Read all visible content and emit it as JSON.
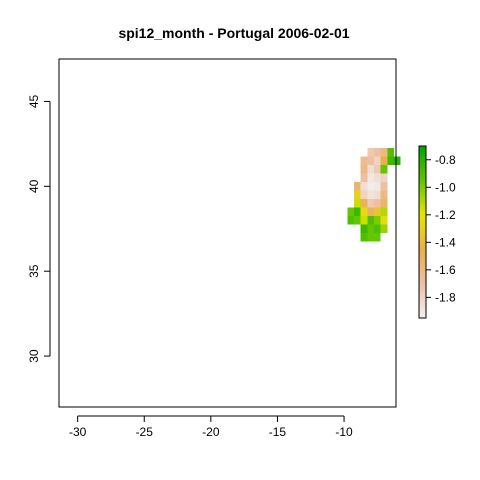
{
  "chart_data": {
    "type": "heatmap",
    "title": "spi12_month - Portugal 2006-02-01",
    "xlabel": "",
    "ylabel": "",
    "xlim": [
      -31.4,
      -6.1
    ],
    "ylim": [
      27,
      47.5
    ],
    "x_ticks": [
      -30,
      -25,
      -20,
      -15,
      -10
    ],
    "x_tick_labels": [
      "-30",
      "-25",
      "-20",
      "-15",
      "-10"
    ],
    "y_ticks": [
      30,
      35,
      40,
      45
    ],
    "y_tick_labels": [
      "30",
      "35",
      "40",
      "45"
    ],
    "grid": false,
    "legend": {
      "placement": "right",
      "range": [
        -1.95,
        -0.7
      ],
      "ticks": [
        -1.8,
        -1.6,
        -1.4,
        -1.2,
        -1.0,
        -0.8
      ],
      "tick_labels": [
        "-1.8",
        "-1.6",
        "-1.4",
        "-1.2",
        "-1.0",
        "-0.8"
      ],
      "colors": [
        "#f2f2f2",
        "#eebfa4",
        "#e8b04a",
        "#e6e600",
        "#63c600",
        "#00a600"
      ]
    },
    "cell_size": 0.5,
    "cells": [
      [
        -8.0,
        42.0,
        -1.75
      ],
      [
        -7.5,
        42.0,
        -1.7
      ],
      [
        -7.0,
        42.0,
        -1.6
      ],
      [
        -6.5,
        42.0,
        -0.9
      ],
      [
        -8.5,
        41.5,
        -1.65
      ],
      [
        -8.0,
        41.5,
        -1.7
      ],
      [
        -7.5,
        41.5,
        -1.8
      ],
      [
        -7.0,
        41.5,
        -1.45
      ],
      [
        -6.5,
        41.5,
        -0.85
      ],
      [
        -6.0,
        41.5,
        -0.8
      ],
      [
        -8.5,
        41.0,
        -1.6
      ],
      [
        -8.0,
        41.0,
        -1.85
      ],
      [
        -7.5,
        41.0,
        -1.75
      ],
      [
        -7.0,
        41.0,
        -0.95
      ],
      [
        -8.5,
        40.5,
        -1.7
      ],
      [
        -8.0,
        40.5,
        -1.9
      ],
      [
        -7.5,
        40.5,
        -1.85
      ],
      [
        -7.0,
        40.5,
        -1.8
      ],
      [
        -9.0,
        40.0,
        -1.55
      ],
      [
        -8.5,
        40.0,
        -1.85
      ],
      [
        -8.0,
        40.0,
        -1.92
      ],
      [
        -7.5,
        40.0,
        -1.9
      ],
      [
        -7.0,
        40.0,
        -1.7
      ],
      [
        -9.0,
        39.5,
        -1.3
      ],
      [
        -8.5,
        39.5,
        -1.8
      ],
      [
        -8.0,
        39.5,
        -1.88
      ],
      [
        -7.5,
        39.5,
        -1.85
      ],
      [
        -7.0,
        39.5,
        -1.6
      ],
      [
        -9.0,
        39.0,
        -1.15
      ],
      [
        -8.5,
        39.0,
        -1.5
      ],
      [
        -8.0,
        39.0,
        -1.75
      ],
      [
        -7.5,
        39.0,
        -1.7
      ],
      [
        -7.0,
        39.0,
        -1.55
      ],
      [
        -9.5,
        38.5,
        -0.95
      ],
      [
        -9.0,
        38.5,
        -0.85
      ],
      [
        -8.5,
        38.5,
        -1.25
      ],
      [
        -8.0,
        38.5,
        -1.5
      ],
      [
        -7.5,
        38.5,
        -1.35
      ],
      [
        -7.0,
        38.5,
        -1.1
      ],
      [
        -9.5,
        38.0,
        -0.9
      ],
      [
        -9.0,
        38.0,
        -0.95
      ],
      [
        -8.5,
        38.0,
        -1.15
      ],
      [
        -8.0,
        38.0,
        -0.9
      ],
      [
        -7.5,
        38.0,
        -1.0
      ],
      [
        -7.0,
        38.0,
        -1.25
      ],
      [
        -8.5,
        37.5,
        -0.85
      ],
      [
        -8.0,
        37.5,
        -0.95
      ],
      [
        -7.5,
        37.5,
        -0.9
      ],
      [
        -7.0,
        37.5,
        -1.05
      ],
      [
        -8.5,
        37.0,
        -0.9
      ],
      [
        -8.0,
        37.0,
        -0.95
      ],
      [
        -7.5,
        37.0,
        -0.95
      ]
    ]
  }
}
